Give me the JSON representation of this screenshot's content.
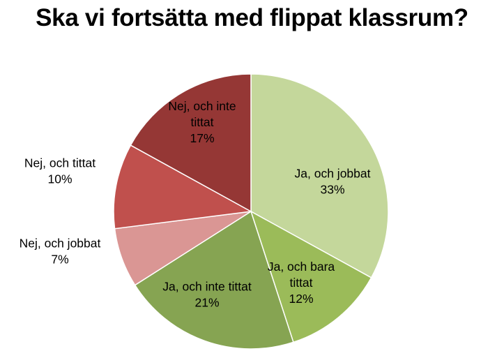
{
  "chart_data": {
    "type": "pie",
    "title": "Ska vi fortsätta med flippat klassrum?",
    "slices": [
      {
        "label_lines": [
          "Ja, och jobbat"
        ],
        "value": 33,
        "value_label": "33%",
        "color": "#c4d79b"
      },
      {
        "label_lines": [
          "Ja, och bara",
          "tittat"
        ],
        "value": 12,
        "value_label": "12%",
        "color": "#9bbb59"
      },
      {
        "label_lines": [
          "Ja, och inte tittat"
        ],
        "value": 21,
        "value_label": "21%",
        "color": "#86a452"
      },
      {
        "label_lines": [
          "Nej, och jobbat"
        ],
        "value": 7,
        "value_label": "7%",
        "color": "#da9694"
      },
      {
        "label_lines": [
          "Nej, och tittat"
        ],
        "value": 10,
        "value_label": "10%",
        "color": "#c0504d"
      },
      {
        "label_lines": [
          "Nej, och inte",
          "tittat"
        ],
        "value": 17,
        "value_label": "17%",
        "color": "#953735"
      }
    ]
  }
}
